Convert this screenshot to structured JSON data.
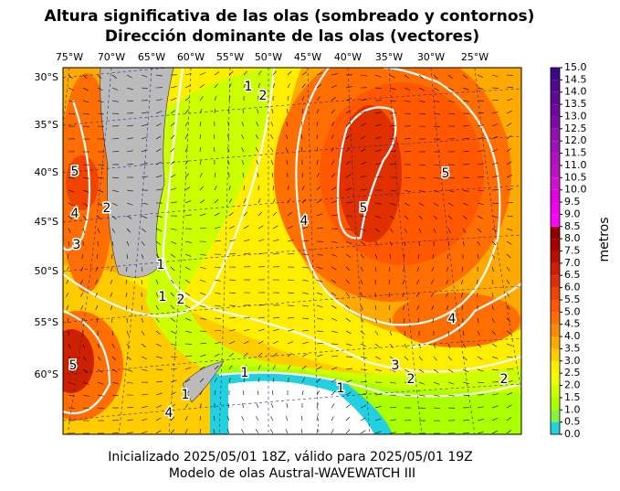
{
  "title": [
    "Altura significativa de las olas (sombreado y contornos)",
    "Dirección dominante de las olas (vectores)"
  ],
  "lon_labels": [
    "75°W",
    "70°W",
    "65°W",
    "60°W",
    "55°W",
    "50°W",
    "45°W",
    "40°W",
    "35°W",
    "30°W",
    "25°W"
  ],
  "lat_labels": [
    "30°S",
    "35°S",
    "40°S",
    "45°S",
    "50°S",
    "55°S",
    "60°S"
  ],
  "colorbar": {
    "label": "metros",
    "lim": [
      0,
      15
    ],
    "ticks": [
      {
        "value": 0,
        "label": "0.0"
      },
      0.5,
      {
        "value": 1,
        "label": "1.0"
      },
      1.5,
      {
        "value": 2,
        "label": "2.0"
      },
      2.5,
      {
        "value": 3,
        "label": "3.0"
      },
      3.5,
      {
        "value": 4,
        "label": "4.0"
      },
      4.5,
      {
        "value": 5,
        "label": "5.0"
      },
      5.5,
      {
        "value": 6,
        "label": "6.0"
      },
      6.5,
      {
        "value": 7,
        "label": "7.0"
      },
      7.5,
      {
        "value": 8,
        "label": "8.0"
      },
      8.5,
      {
        "value": 9,
        "label": "9.0"
      },
      9.5,
      {
        "value": 10,
        "label": "10.0"
      },
      10.5,
      {
        "value": 11,
        "label": "11.0"
      },
      11.5,
      {
        "value": 12,
        "label": "12.0"
      },
      12.5,
      {
        "value": 13,
        "label": "13.0"
      },
      13.5,
      {
        "value": 14,
        "label": "14.0"
      },
      14.5,
      {
        "value": 15,
        "label": "15.0"
      }
    ],
    "colors": [
      "#22d0e0",
      "#88f040",
      "#aaff00",
      "#ccff00",
      "#eeff00",
      "#ffee00",
      "#ffcc00",
      "#ffaa00",
      "#ff8c00",
      "#ff6e00",
      "#ff5800",
      "#f04400",
      "#e03000",
      "#cc2000",
      "#b81000",
      "#a40000",
      "#900000",
      "#ff00ff",
      "#f000f0",
      "#e000e0",
      "#d010d0",
      "#c010c8",
      "#b010c0",
      "#a010b8",
      "#9010b0",
      "#8008a8",
      "#7008a0",
      "#600898",
      "#500890",
      "#400888"
    ]
  },
  "contour_labels": [
    "5",
    "4",
    "3",
    "2",
    "1",
    "2",
    "1",
    "4",
    "5",
    "5",
    "4",
    "3",
    "2",
    "2",
    "1",
    "1",
    "4",
    "5",
    "2",
    "1",
    "1"
  ],
  "footer": [
    "Inicializado 2025/05/01 18Z, válido para 2025/05/01 19Z",
    "Modelo de olas Austral-WAVEWATCH III"
  ]
}
